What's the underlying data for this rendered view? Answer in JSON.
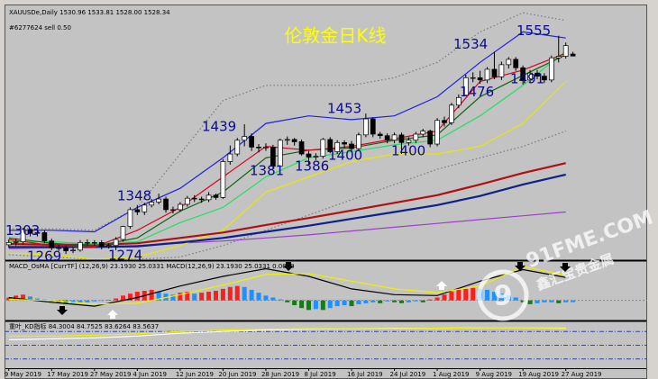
{
  "chart_data": [
    {
      "type": "candlestick",
      "title": "伦敦金日K线",
      "header": "XAUUSDe,Daily  1530.96 1533.81 1528.00 1528.34",
      "subheader": "#6277624 sell 0.50",
      "open": [
        1281,
        1284,
        1285,
        1301,
        1296,
        1297,
        1286,
        1277,
        1277,
        1273,
        1274,
        1284,
        1284,
        1284,
        1279,
        1280,
        1288,
        1305,
        1327,
        1324,
        1333,
        1337,
        1341,
        1327,
        1327,
        1334,
        1342,
        1341,
        1340,
        1346,
        1343,
        1390,
        1400,
        1418,
        1423,
        1409,
        1408,
        1409,
        1384,
        1418,
        1419,
        1416,
        1400,
        1396,
        1397,
        1419,
        1403,
        1415,
        1413,
        1407,
        1425,
        1446,
        1426,
        1424,
        1418,
        1425,
        1415,
        1418,
        1426,
        1430,
        1413,
        1444,
        1441,
        1464,
        1477,
        1500,
        1500,
        1497,
        1511,
        1501,
        1517,
        1524,
        1513,
        1497,
        1506,
        1502,
        1497,
        1526,
        1528,
        1530.96
      ],
      "high": [
        1288,
        1289,
        1303,
        1302,
        1301,
        1300,
        1289,
        1281,
        1280,
        1278,
        1287,
        1288,
        1287,
        1287,
        1283,
        1291,
        1306,
        1330,
        1333,
        1336,
        1341,
        1348,
        1344,
        1331,
        1337,
        1345,
        1346,
        1344,
        1350,
        1348,
        1393,
        1411,
        1421,
        1439,
        1427,
        1413,
        1414,
        1412,
        1420,
        1423,
        1421,
        1419,
        1404,
        1401,
        1421,
        1422,
        1418,
        1418,
        1417,
        1428,
        1453,
        1448,
        1429,
        1427,
        1428,
        1428,
        1422,
        1429,
        1433,
        1432,
        1447,
        1449,
        1467,
        1478,
        1504,
        1507,
        1509,
        1514,
        1534,
        1521,
        1527,
        1527,
        1516,
        1510,
        1510,
        1506,
        1529,
        1555,
        1546,
        1533.81
      ],
      "low": [
        1277,
        1280,
        1281,
        1292,
        1292,
        1283,
        1274,
        1273,
        1269,
        1270,
        1272,
        1280,
        1280,
        1275,
        1276,
        1274,
        1285,
        1302,
        1320,
        1320,
        1330,
        1334,
        1323,
        1322,
        1324,
        1331,
        1337,
        1336,
        1337,
        1340,
        1341,
        1386,
        1397,
        1410,
        1404,
        1402,
        1404,
        1381,
        1383,
        1412,
        1411,
        1398,
        1386,
        1392,
        1394,
        1401,
        1400,
        1408,
        1403,
        1405,
        1422,
        1422,
        1420,
        1414,
        1414,
        1400,
        1411,
        1414,
        1422,
        1409,
        1410,
        1436,
        1438,
        1460,
        1476,
        1494,
        1492,
        1493,
        1498,
        1497,
        1512,
        1509,
        1491,
        1494,
        1498,
        1493,
        1494,
        1520,
        1525,
        1528
      ],
      "close": [
        1284,
        1285,
        1301,
        1296,
        1297,
        1286,
        1277,
        1277,
        1273,
        1274,
        1284,
        1284,
        1284,
        1279,
        1280,
        1288,
        1305,
        1327,
        1324,
        1333,
        1337,
        1341,
        1327,
        1327,
        1334,
        1342,
        1341,
        1340,
        1346,
        1343,
        1390,
        1400,
        1418,
        1423,
        1409,
        1408,
        1409,
        1384,
        1418,
        1419,
        1416,
        1400,
        1396,
        1397,
        1419,
        1403,
        1415,
        1413,
        1407,
        1425,
        1446,
        1426,
        1424,
        1418,
        1425,
        1415,
        1418,
        1426,
        1430,
        1413,
        1444,
        1441,
        1464,
        1474,
        1500,
        1500,
        1497,
        1511,
        1501,
        1517,
        1524,
        1513,
        1497,
        1506,
        1502,
        1497,
        1526,
        1528,
        1542,
        1528.34
      ],
      "up_color": "#ffffff",
      "down_color": "#000000",
      "ylim": [
        1262,
        1590
      ],
      "xlim": [
        -0.6,
        89.4
      ],
      "xticks": [
        {
          "value": 0,
          "label": "9 May 2019"
        },
        {
          "value": 6,
          "label": "17 May 2019"
        },
        {
          "value": 12,
          "label": "27 May 2019"
        },
        {
          "value": 18,
          "label": "4 Jun 2019"
        },
        {
          "value": 24,
          "label": "12 Jun 2019"
        },
        {
          "value": 30,
          "label": "20 Jun 2019"
        },
        {
          "value": 36,
          "label": "28 Jun 2019"
        },
        {
          "value": 42,
          "label": "8 Jul 2019"
        },
        {
          "value": 48,
          "label": "16 Jul 2019"
        },
        {
          "value": 54,
          "label": "24 Jul 2019"
        },
        {
          "value": 60,
          "label": "1 Aug 2019"
        },
        {
          "value": 66,
          "label": "9 Aug 2019"
        },
        {
          "value": 72,
          "label": "19 Aug 2019"
        },
        {
          "value": 78,
          "label": "27 Aug 2019"
        }
      ],
      "annotations": [
        1303,
        1269,
        1274,
        1348,
        1439,
        1381,
        1386,
        1453,
        1400,
        1400,
        1534,
        1476,
        1555,
        1491
      ],
      "annotation_color": "#0b0b8c",
      "series": [
        {
          "color": "#7a7a7a",
          "style": "dotted",
          "x": [
            0,
            6,
            12,
            18,
            24,
            30,
            36,
            42,
            48,
            54,
            60,
            66,
            72,
            78
          ],
          "values": [
            1302,
            1302,
            1300,
            1330,
            1400,
            1470,
            1490,
            1490,
            1490,
            1500,
            1520,
            1560,
            1585,
            1575
          ]
        },
        {
          "color": "#7a7a7a",
          "style": "dotted",
          "x": [
            0,
            6,
            12,
            18,
            24,
            30,
            36,
            42,
            48,
            54,
            60,
            66,
            72,
            78
          ],
          "values": [
            1268,
            1265,
            1262,
            1262,
            1265,
            1280,
            1300,
            1320,
            1340,
            1360,
            1380,
            1395,
            1410,
            1430
          ]
        },
        {
          "color": "#9a40c8",
          "style": "solid",
          "x": [
            0,
            6,
            12,
            18,
            24,
            30,
            36,
            42,
            48,
            54,
            60,
            66,
            72,
            78
          ],
          "values": [
            1276,
            1277,
            1278,
            1280,
            1283,
            1286,
            1290,
            1294,
            1299,
            1304,
            1309,
            1314,
            1319,
            1324
          ]
        },
        {
          "color": "#2020e0",
          "style": "solid",
          "x": [
            0,
            6,
            12,
            18,
            24,
            30,
            36,
            42,
            48,
            54,
            60,
            66,
            72,
            78
          ],
          "values": [
            1300,
            1300,
            1298,
            1330,
            1355,
            1395,
            1440,
            1450,
            1445,
            1450,
            1475,
            1520,
            1560,
            1552
          ]
        },
        {
          "color": "#e8e800",
          "style": "solid",
          "x": [
            0,
            6,
            12,
            18,
            24,
            30,
            36,
            42,
            48,
            54,
            60,
            66,
            72,
            78
          ],
          "values": [
            1270,
            1268,
            1262,
            1265,
            1280,
            1300,
            1350,
            1370,
            1390,
            1400,
            1400,
            1410,
            1440,
            1495
          ]
        },
        {
          "color": "#10208a",
          "style": "thick",
          "x": [
            0,
            6,
            12,
            18,
            24,
            30,
            36,
            42,
            48,
            54,
            60,
            66,
            72,
            78
          ],
          "values": [
            1278,
            1278,
            1278,
            1279,
            1284,
            1290,
            1298,
            1306,
            1315,
            1324,
            1333,
            1345,
            1360,
            1373
          ]
        },
        {
          "color": "#b01010",
          "style": "thick",
          "x": [
            0,
            6,
            12,
            18,
            24,
            30,
            36,
            42,
            48,
            54,
            60,
            66,
            72,
            78
          ],
          "values": [
            1282,
            1281,
            1281,
            1283,
            1290,
            1297,
            1307,
            1316,
            1326,
            1336,
            1346,
            1360,
            1375,
            1388
          ]
        },
        {
          "color": "#20e060",
          "style": "solid",
          "x": [
            0,
            6,
            12,
            18,
            24,
            30,
            36,
            42,
            48,
            54,
            60,
            66,
            72,
            78
          ],
          "values": [
            1285,
            1285,
            1282,
            1285,
            1310,
            1330,
            1370,
            1395,
            1403,
            1412,
            1418,
            1450,
            1490,
            1535
          ]
        },
        {
          "color": "#106010",
          "style": "solid",
          "x": [
            0,
            6,
            12,
            18,
            24,
            30,
            36,
            42,
            48,
            54,
            60,
            66,
            72,
            78
          ],
          "values": [
            1290,
            1283,
            1279,
            1290,
            1325,
            1350,
            1395,
            1405,
            1408,
            1418,
            1425,
            1475,
            1503,
            1530
          ]
        },
        {
          "color": "#e00020",
          "style": "solid",
          "x": [
            0,
            6,
            12,
            18,
            24,
            30,
            36,
            42,
            48,
            54,
            60,
            66,
            72,
            78
          ],
          "values": [
            1288,
            1280,
            1278,
            1300,
            1330,
            1370,
            1410,
            1405,
            1410,
            1420,
            1430,
            1495,
            1510,
            1532
          ]
        }
      ]
    },
    {
      "type": "macd",
      "label": "MACD_OsMA [CurrTF] (12,26,9) 23.1930 25.0331   MACD(12,26,9) 23.1930 25.0331 0.0000",
      "histogram": [
        3,
        5,
        6,
        4,
        2,
        1,
        -1,
        -2,
        -3,
        -3,
        -2,
        -2,
        -1,
        -0.5,
        0.5,
        2,
        5,
        7,
        9,
        10,
        11,
        9,
        7,
        6,
        8,
        9,
        7,
        8,
        9,
        10,
        12,
        14,
        15,
        14,
        11,
        8,
        5,
        3,
        1,
        -2,
        -5,
        -8,
        -10,
        -9,
        -10,
        -8,
        -6,
        -5,
        -6,
        -4,
        -3,
        -2,
        -3,
        -1,
        -2,
        -3,
        -2,
        -1,
        -2,
        1,
        3,
        6,
        9,
        11,
        12,
        13,
        12,
        11,
        9,
        7,
        5,
        3,
        -2,
        -4,
        -3,
        -2,
        -2,
        -3,
        -2,
        -1.84
      ],
      "bar_colors": [
        "#ff1e1e",
        "#1e90ff",
        "#1a7a1a",
        "#1e90ff"
      ],
      "ylim": [
        -20,
        40
      ],
      "xlim": [
        -0.6,
        89.4
      ],
      "series": [
        {
          "color": "#000000",
          "x": [
            0,
            6,
            12,
            18,
            24,
            30,
            36,
            42,
            48,
            54,
            60,
            66,
            72,
            78
          ],
          "values": [
            3,
            -2,
            -6,
            3,
            15,
            25,
            33,
            25,
            12,
            6,
            5,
            20,
            32,
            24
          ]
        },
        {
          "color": "#f0f000",
          "x": [
            0,
            6,
            12,
            18,
            24,
            30,
            36,
            42,
            48,
            54,
            60,
            66,
            72,
            78
          ],
          "values": [
            1,
            0,
            -4,
            -3,
            6,
            16,
            27,
            28,
            20,
            12,
            8,
            15,
            35,
            26
          ]
        }
      ]
    },
    {
      "type": "kd",
      "label": "重叶_KD指标  84.3004 84.7525 83.6264 83.5637",
      "ylim": [
        0,
        100
      ],
      "xlim": [
        -0.6,
        89.4
      ],
      "levels": [
        80,
        50,
        20
      ],
      "level_color": "#3040c0",
      "series": [
        {
          "color": "#ffffff",
          "x": [
            0,
            6,
            12,
            18,
            24,
            30,
            36,
            42,
            48,
            54,
            60,
            66,
            72,
            78
          ],
          "values": [
            62,
            64,
            66,
            70,
            76,
            80,
            83,
            85,
            86,
            87,
            87,
            88,
            88,
            87
          ]
        },
        {
          "color": "#f0f000",
          "x": [
            0,
            6,
            12,
            18,
            24,
            30,
            36,
            42,
            48,
            54,
            60,
            66,
            72,
            78
          ],
          "values": [
            70,
            70,
            72,
            75,
            80,
            83,
            85,
            86,
            86,
            86,
            87,
            88,
            88,
            88
          ]
        }
      ]
    }
  ],
  "watermark": {
    "logo": "9",
    "brand": "91FME.COM",
    "tagline": "鑫汇宝贵金属"
  }
}
